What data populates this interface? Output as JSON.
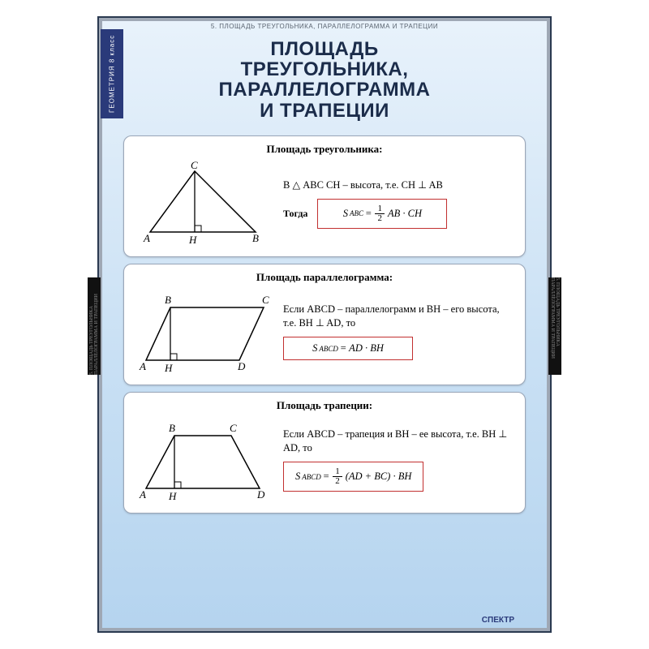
{
  "poster": {
    "header_strip": "5. ПЛОЩАДЬ ТРЕУГОЛЬНИКА, ПАРАЛЛЕЛОГРАММА И ТРАПЕЦИИ",
    "side_tab": "ГЕОМЕТРИЯ  8 класс",
    "side_black": "5. ПЛОЩАДЬ ТРЕУГОЛЬНИКА ПАРАЛЛЕЛОГРАММА И ТРАПЕЦИИ",
    "title_l1": "ПЛОЩАДЬ",
    "title_l2": "ТРЕУГОЛЬНИКА,",
    "title_l3": "ПАРАЛЛЕЛОГРАММА",
    "title_l4": "И ТРАПЕЦИИ",
    "brand": "СПЕКТР"
  },
  "colors": {
    "formula_border": "#c23030",
    "formula_text": "#111111",
    "shape_stroke": "#000000"
  },
  "sections": [
    {
      "title": "Площадь треугольника:",
      "description": "В △ ABC   CH – высота, т.е. CH ⊥ AB",
      "then": "Тогда",
      "formula_html": "S<span class='sub'>ABC</span> = <span class='frac'><span class='n'>1</span><span class='d'>2</span></span> AB · CH",
      "labels": {
        "A": "A",
        "B": "B",
        "C": "C",
        "H": "H"
      }
    },
    {
      "title": "Площадь параллелограмма:",
      "description": "Если ABCD – параллелограмм и BH – его высота, т.е. BH ⊥ AD, то",
      "then": "",
      "formula_html": "S<span class='sub'>ABCD</span> = AD · BH",
      "labels": {
        "A": "A",
        "B": "B",
        "C": "C",
        "D": "D",
        "H": "H"
      }
    },
    {
      "title": "Площадь трапеции:",
      "description": "Если ABCD – трапеция и BH – ее высота, т.е. BH ⊥ AD, то",
      "then": "",
      "formula_html": "S<span class='sub'>ABCD</span> = <span class='frac'><span class='n'>1</span><span class='d'>2</span></span> (AD + BC) · BH",
      "labels": {
        "A": "A",
        "B": "B",
        "C": "C",
        "D": "D",
        "H": "H"
      }
    }
  ]
}
